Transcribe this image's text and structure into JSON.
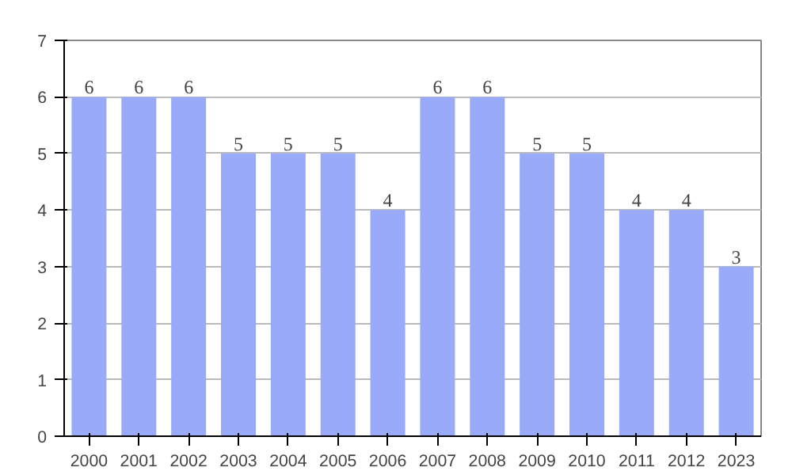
{
  "chart_data": {
    "type": "bar",
    "categories": [
      "2000",
      "2001",
      "2002",
      "2003",
      "2004",
      "2005",
      "2006",
      "2007",
      "2008",
      "2009",
      "2010",
      "2011",
      "2012",
      "2023"
    ],
    "values": [
      6,
      6,
      6,
      5,
      5,
      5,
      4,
      6,
      6,
      5,
      5,
      4,
      4,
      3
    ],
    "color": "#99aaf8",
    "ylim": [
      0,
      7
    ],
    "yticks": [
      0,
      1,
      2,
      3,
      4,
      5,
      6,
      7
    ],
    "grid": "y",
    "data_labels": true
  }
}
